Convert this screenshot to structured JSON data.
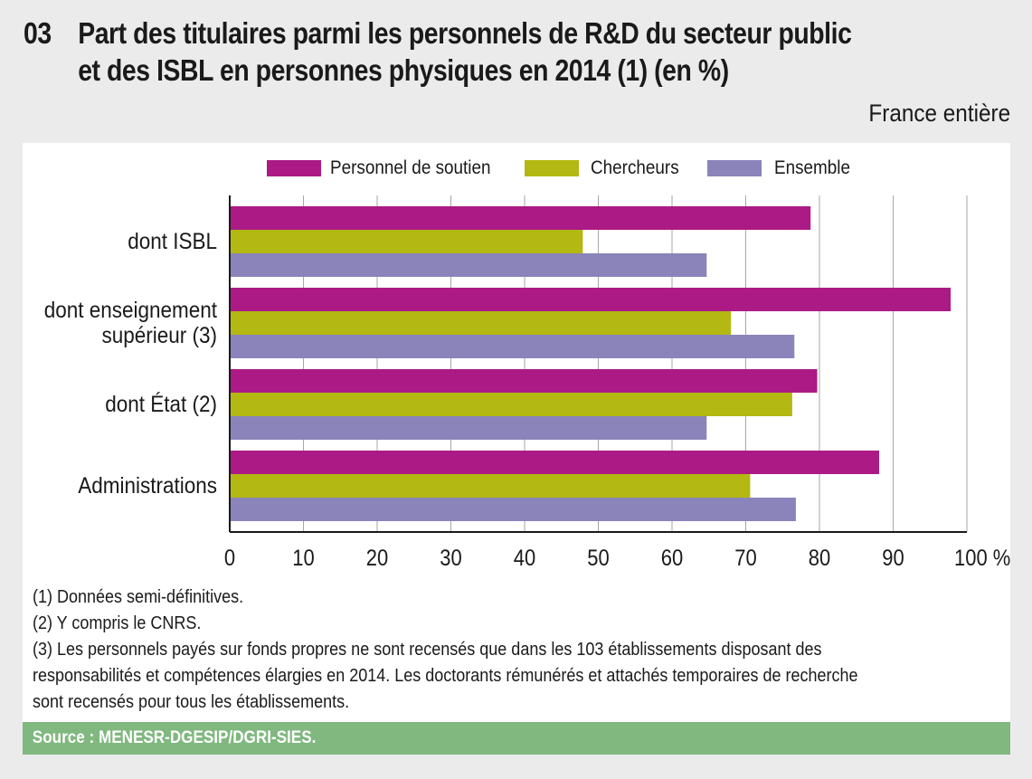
{
  "header": {
    "number": "03",
    "title_line1": "Part des titulaires parmi les personnels de R&D du secteur public",
    "title_line2": "et des ISBL en personnes physiques en 2014 (1) (en %)",
    "scope": "France entière"
  },
  "chart_data": {
    "type": "bar",
    "orientation": "horizontal",
    "title": "Part des titulaires parmi les personnels de R&D du secteur public et des ISBL en personnes physiques en 2014 (1) (en %)",
    "categories": [
      "dont ISBL",
      "dont enseignement supérieur (3)",
      "dont État (2)",
      "Administrations"
    ],
    "category_lines": [
      [
        "dont ISBL"
      ],
      [
        "dont enseignement",
        "supérieur (3)"
      ],
      [
        "dont État (2)"
      ],
      [
        "Administrations"
      ]
    ],
    "series": [
      {
        "name": "Personnel de soutien",
        "color": "#ab1a85",
        "values": [
          78.8,
          97.8,
          79.7,
          88.1
        ]
      },
      {
        "name": "Chercheurs",
        "color": "#b3b812",
        "values": [
          47.9,
          68.0,
          76.3,
          70.6
        ]
      },
      {
        "name": "Ensemble",
        "color": "#8a84ba",
        "values": [
          64.7,
          76.6,
          64.7,
          76.8
        ]
      }
    ],
    "xlim": [
      0,
      100
    ],
    "xticks": [
      0,
      10,
      20,
      30,
      40,
      50,
      60,
      70,
      80,
      90,
      100
    ],
    "xtick_labels": [
      "0",
      "10",
      "20",
      "30",
      "40",
      "50",
      "60",
      "70",
      "80",
      "90",
      "100 %"
    ],
    "xlabel": "",
    "ylabel": "",
    "grid": true,
    "legend_position": "top"
  },
  "notes": [
    "(1) Données semi-définitives.",
    "(2) Y compris le CNRS.",
    "(3) Les personnels payés sur fonds propres ne sont recensés que dans les 103 établissements disposant des",
    "responsabilités et compétences élargies en 2014. Les doctorants rémunérés et attachés temporaires de recherche",
    "sont recensés pour tous les établissements."
  ],
  "source": "Source : MENESR-DGESIP/DGRI-SIES."
}
